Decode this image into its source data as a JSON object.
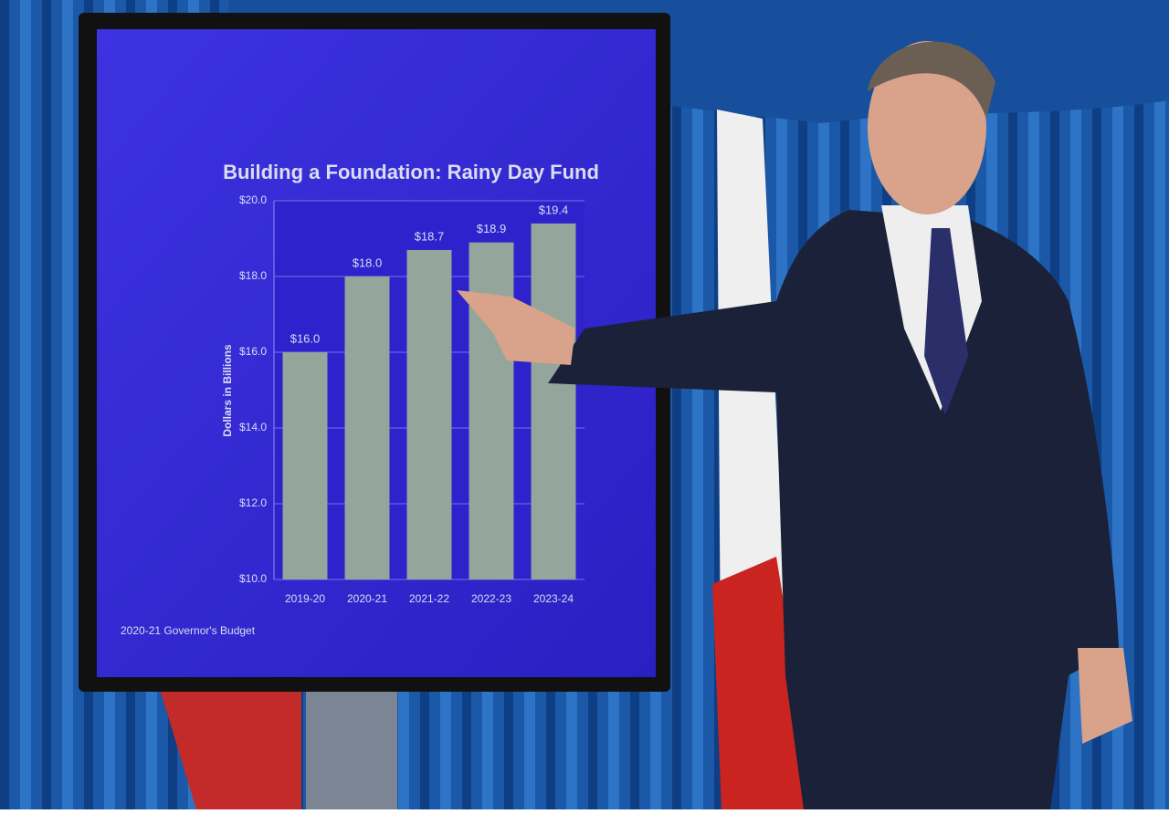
{
  "chart_data": {
    "type": "bar",
    "title": "Building a Foundation: Rainy Day Fund",
    "y_label": "Dollars in Billions",
    "categories": [
      "2019-20",
      "2020-21",
      "2021-22",
      "2022-23",
      "2023-24"
    ],
    "values": [
      16.0,
      18.0,
      18.7,
      18.9,
      19.4
    ],
    "value_labels": [
      "$16.0",
      "$18.0",
      "$18.7",
      "$18.9",
      "$19.4"
    ],
    "color": "#94a69c",
    "ylim": [
      10,
      20
    ],
    "yticks": [
      {
        "value": 10,
        "label": "$10.0"
      },
      {
        "value": 12,
        "label": "$12.0"
      },
      {
        "value": 14,
        "label": "$14.0"
      },
      {
        "value": 16,
        "label": "$16.0"
      },
      {
        "value": 18,
        "label": "$18.0"
      },
      {
        "value": 20,
        "label": "$20.0"
      }
    ],
    "grid": true,
    "footnote": "2020-21 Governor's Budget"
  }
}
